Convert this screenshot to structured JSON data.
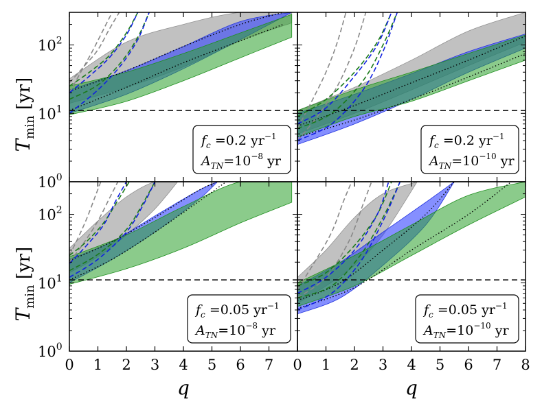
{
  "chart_data": {
    "type": "line",
    "layout": "2x2 grid of panels, shared axes",
    "xlabel": "q",
    "ylabel_symbol": "T",
    "ylabel_subscript": "min",
    "ylabel_unit": "[yr]",
    "xlim": [
      0,
      8
    ],
    "ylim": [
      1,
      300
    ],
    "yscale": "log",
    "x_ticks": [
      "0",
      "1",
      "2",
      "3",
      "4",
      "5",
      "6",
      "7",
      "8"
    ],
    "y_ticks": [
      {
        "base": "10",
        "exp": "0",
        "value": 1
      },
      {
        "base": "10",
        "exp": "1",
        "value": 10
      },
      {
        "base": "10",
        "exp": "2",
        "value": 100
      }
    ],
    "reference_line": {
      "value": 11,
      "style": "black dashed"
    },
    "colors": {
      "gray": "#a0a0a0",
      "blue": "#3344ff",
      "green": "#2ca02c",
      "teal": "#1f6f6f",
      "dash_gray": "#888888",
      "dash_blue": "#1020e0",
      "dash_green": "#1a7a1a"
    },
    "panels": [
      {
        "id": "top-left",
        "legend": {
          "fc_value": "0.2",
          "fc_unit": "yr",
          "fc_exp": "−1",
          "atn_value": "10",
          "atn_exp": "−8",
          "atn_unit": "yr"
        },
        "bands": [
          {
            "color": "gray",
            "x": [
              0,
              2,
              4,
              6,
              7.8
            ],
            "lower": [
              14,
              24,
              48,
              115,
              210
            ],
            "upper": [
              32,
              110,
              200,
              300,
              300
            ]
          },
          {
            "color": "blue",
            "x": [
              0,
              2,
              4,
              6,
              7.8
            ],
            "lower": [
              10,
              19,
              45,
              120,
              300
            ],
            "upper": [
              22,
              42,
              95,
              220,
              300
            ]
          },
          {
            "color": "green",
            "x": [
              0,
              2,
              4,
              6,
              7.8
            ],
            "lower": [
              9.5,
              15,
              30,
              65,
              130
            ],
            "upper": [
              25,
              40,
              75,
              150,
              280
            ]
          }
        ],
        "dashed_curves": [
          {
            "color": "dash_gray",
            "x": [
              0,
              0.5,
              1,
              1.4,
              1.75
            ],
            "y": [
              28,
              48,
              85,
              170,
              300
            ]
          },
          {
            "color": "dash_gray",
            "x": [
              0,
              0.4,
              0.8,
              1.2,
              1.5
            ],
            "y": [
              20,
              40,
              80,
              170,
              300
            ]
          },
          {
            "color": "dash_green",
            "x": [
              0,
              0.7,
              1.4,
              2.0,
              2.4
            ],
            "y": [
              25,
              40,
              70,
              150,
              300
            ]
          },
          {
            "color": "dash_green",
            "x": [
              0,
              1.0,
              1.8,
              2.4,
              2.8
            ],
            "y": [
              16,
              26,
              55,
              130,
              300
            ]
          },
          {
            "color": "dash_blue",
            "x": [
              0,
              0.7,
              1.4,
              2.0,
              2.4
            ],
            "y": [
              20,
              35,
              65,
              140,
              300
            ]
          },
          {
            "color": "dash_blue",
            "x": [
              0,
              1.0,
              1.8,
              2.4,
              2.8
            ],
            "y": [
              10,
              22,
              50,
              120,
              300
            ]
          }
        ],
        "dotted_curves": [
          {
            "x": [
              0,
              2,
              4,
              6,
              7.5
            ],
            "y": [
              21,
              42,
              95,
              200,
              300
            ]
          },
          {
            "x": [
              0,
              2,
              4,
              6,
              7.5
            ],
            "y": [
              11,
              24,
              55,
              115,
              200
            ]
          }
        ]
      },
      {
        "id": "top-right",
        "legend": {
          "fc_value": "0.2",
          "fc_unit": "yr",
          "fc_exp": "−1",
          "atn_value": "10",
          "atn_exp": "−10",
          "atn_unit": "yr"
        },
        "bands": [
          {
            "color": "gray",
            "x": [
              0,
              2,
              4,
              6,
              8
            ],
            "lower": [
              5,
              10,
              22,
              50,
              110
            ],
            "upper": [
              11,
              24,
              60,
              160,
              300
            ]
          },
          {
            "color": "blue",
            "x": [
              0,
              2,
              4,
              6,
              8
            ],
            "lower": [
              3.5,
              7,
              16,
              40,
              90
            ],
            "upper": [
              10,
              19,
              38,
              80,
              145
            ]
          },
          {
            "color": "green",
            "x": [
              0,
              2,
              4,
              6,
              8
            ],
            "lower": [
              4.5,
              9,
              15,
              30,
              60
            ],
            "upper": [
              11,
              22,
              40,
              75,
              140
            ]
          }
        ],
        "dashed_curves": [
          {
            "color": "dash_gray",
            "x": [
              0,
              0.5,
              1.0,
              1.4,
              1.7
            ],
            "y": [
              6,
              15,
              40,
              110,
              300
            ]
          },
          {
            "color": "dash_gray",
            "x": [
              0,
              0.7,
              1.4,
              2.0,
              2.4
            ],
            "y": [
              4,
              9,
              25,
              90,
              300
            ]
          },
          {
            "color": "dash_green",
            "x": [
              0,
              1.0,
              2.0,
              2.8,
              3.3
            ],
            "y": [
              9,
              16,
              40,
              110,
              300
            ]
          },
          {
            "color": "dash_green",
            "x": [
              0,
              1.2,
              2.3,
              3.0,
              3.5
            ],
            "y": [
              6,
              10,
              30,
              100,
              300
            ]
          },
          {
            "color": "dash_blue",
            "x": [
              0,
              1.0,
              2.0,
              2.8,
              3.3
            ],
            "y": [
              7,
              12,
              35,
              100,
              300
            ]
          },
          {
            "color": "dash_blue",
            "x": [
              0,
              1.2,
              2.3,
              3.0,
              3.5
            ],
            "y": [
              4,
              7,
              22,
              80,
              300
            ]
          }
        ],
        "dotted_curves": [
          {
            "x": [
              0,
              2,
              4,
              6,
              8
            ],
            "y": [
              6.5,
              13,
              28,
              60,
              135
            ]
          },
          {
            "x": [
              0,
              2,
              4,
              6,
              8
            ],
            "y": [
              4.5,
              8,
              16,
              34,
              75
            ]
          }
        ]
      },
      {
        "id": "bottom-left",
        "legend": {
          "fc_value": "0.05",
          "fc_unit": "yr",
          "fc_exp": "−1",
          "atn_value": "10",
          "atn_exp": "−8",
          "atn_unit": "yr"
        },
        "bands": [
          {
            "color": "gray",
            "x": [
              0,
              1,
              2,
              3,
              3.8
            ],
            "lower": [
              14,
              24,
              50,
              120,
              300
            ],
            "upper": [
              32,
              80,
              180,
              300,
              300
            ]
          },
          {
            "color": "blue",
            "x": [
              0,
              1.5,
              3,
              4.5,
              5.2
            ],
            "lower": [
              10,
              22,
              55,
              160,
              300
            ],
            "upper": [
              22,
              40,
              95,
              220,
              300
            ]
          },
          {
            "color": "green",
            "x": [
              0,
              2,
              4,
              6,
              7.8
            ],
            "lower": [
              9.5,
              16,
              32,
              75,
              150
            ],
            "upper": [
              24,
              50,
              130,
              300,
              300
            ]
          }
        ],
        "dashed_curves": [
          {
            "color": "dash_gray",
            "x": [
              0,
              0.3,
              0.6,
              0.9,
              1.1
            ],
            "y": [
              25,
              45,
              85,
              180,
              300
            ]
          },
          {
            "color": "dash_gray",
            "x": [
              0,
              0.5,
              1.0,
              1.4,
              1.7
            ],
            "y": [
              20,
              38,
              80,
              170,
              300
            ]
          },
          {
            "color": "dash_green",
            "x": [
              0,
              0.6,
              1.2,
              1.7,
              2.1
            ],
            "y": [
              25,
              40,
              75,
              160,
              300
            ]
          },
          {
            "color": "dash_green",
            "x": [
              0,
              1.0,
              2.0,
              2.6,
              3.0
            ],
            "y": [
              15,
              26,
              60,
              150,
              300
            ]
          },
          {
            "color": "dash_blue",
            "x": [
              0,
              0.6,
              1.2,
              1.6,
              2.0
            ],
            "y": [
              19,
              35,
              70,
              150,
              300
            ]
          },
          {
            "color": "dash_blue",
            "x": [
              0,
              1.0,
              2.0,
              2.6,
              3.0
            ],
            "y": [
              12,
              22,
              55,
              140,
              300
            ]
          }
        ],
        "dotted_curves": [
          {
            "x": [
              0,
              1.5,
              3,
              4.5,
              5.2
            ],
            "y": [
              21,
              40,
              90,
              220,
              300
            ]
          },
          {
            "x": [
              0,
              1.5,
              3,
              4.5,
              5.5
            ],
            "y": [
              11,
              22,
              55,
              150,
              300
            ]
          }
        ]
      },
      {
        "id": "bottom-right",
        "legend": {
          "fc_value": "0.05",
          "fc_unit": "yr",
          "fc_exp": "−1",
          "atn_value": "10",
          "atn_exp": "−10",
          "atn_unit": "yr"
        },
        "bands": [
          {
            "color": "gray",
            "x": [
              0,
              1,
              2,
              3,
              4.2
            ],
            "lower": [
              5,
              9,
              18,
              50,
              300
            ],
            "upper": [
              12,
              30,
              90,
              200,
              300
            ]
          },
          {
            "color": "blue",
            "x": [
              0,
              1.5,
              3,
              4.5,
              5.5
            ],
            "lower": [
              3.5,
              6,
              18,
              70,
              300
            ],
            "upper": [
              9,
              20,
              55,
              150,
              300
            ]
          },
          {
            "color": "green",
            "x": [
              0,
              2,
              4,
              6,
              8
            ],
            "lower": [
              4.5,
              9,
              25,
              70,
              180
            ],
            "upper": [
              10,
              25,
              70,
              190,
              300
            ]
          }
        ],
        "dashed_curves": [
          {
            "color": "dash_gray",
            "x": [
              0,
              0.6,
              1.2,
              1.6,
              1.9
            ],
            "y": [
              8,
              20,
              55,
              150,
              300
            ]
          },
          {
            "color": "dash_gray",
            "x": [
              0,
              1.0,
              1.8,
              2.3,
              2.6
            ],
            "y": [
              6,
              12,
              40,
              140,
              300
            ]
          },
          {
            "color": "dash_green",
            "x": [
              0,
              1.0,
              2.0,
              2.8,
              3.3
            ],
            "y": [
              9,
              14,
              35,
              100,
              300
            ]
          },
          {
            "color": "dash_green",
            "x": [
              0,
              1.2,
              2.2,
              3.0,
              3.6
            ],
            "y": [
              6,
              9,
              25,
              90,
              300
            ]
          },
          {
            "color": "dash_blue",
            "x": [
              0,
              1.0,
              2.0,
              2.8,
              3.2
            ],
            "y": [
              7,
              12,
              30,
              100,
              300
            ]
          },
          {
            "color": "dash_blue",
            "x": [
              0,
              1.2,
              2.2,
              3.0,
              3.6
            ],
            "y": [
              4,
              7,
              20,
              80,
              300
            ]
          }
        ],
        "dotted_curves": [
          {
            "x": [
              0,
              1.5,
              3,
              4.5,
              5.5
            ],
            "y": [
              5.5,
              10,
              30,
              100,
              300
            ]
          },
          {
            "x": [
              0,
              2,
              4,
              6,
              7.5
            ],
            "y": [
              4.2,
              8.5,
              30,
              100,
              300
            ]
          }
        ]
      }
    ]
  }
}
